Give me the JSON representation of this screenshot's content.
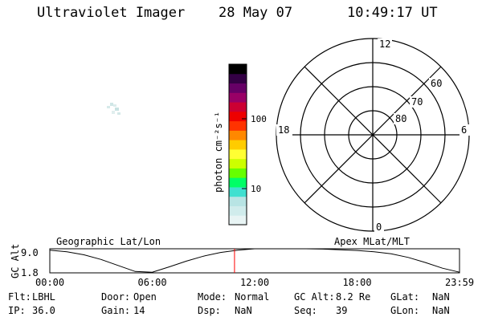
{
  "header": {
    "instrument": "Ultraviolet Imager",
    "date": "28 May 07",
    "time": "10:49:17 UT"
  },
  "colorbar": {
    "label": "photon cm⁻²s⁻¹",
    "ticks": [
      {
        "value": 100,
        "label": "100"
      },
      {
        "value": 10,
        "label": "10"
      }
    ],
    "scale": "log",
    "colors": [
      "#e8f4f4",
      "#d0ecec",
      "#b8e4e4",
      "#40e0d0",
      "#00ff66",
      "#66ff00",
      "#ccff00",
      "#ffff33",
      "#ffcc00",
      "#ff8800",
      "#ff3300",
      "#ee0000",
      "#cc0033",
      "#990066",
      "#660066",
      "#330044",
      "#000000"
    ]
  },
  "polar": {
    "mlt_labels": {
      "top": "12",
      "left": "18",
      "right": "6",
      "bottom": "0"
    },
    "lat_labels": [
      "60",
      "70",
      "80"
    ]
  },
  "timeline": {
    "ylabel": "GC Alt",
    "yticks": [
      "9.0",
      "1.8"
    ],
    "left_title": "Geographic Lat/Lon",
    "right_title": "Apex MLat/MLT",
    "xticks": [
      "00:00",
      "06:00",
      "12:00",
      "18:00",
      "23:59"
    ],
    "current_time_hours": 10.82,
    "curve_color": "#000000",
    "marker_color": "#ff0000"
  },
  "chart_data": {
    "type": "line",
    "xlabel": "",
    "ylabel": "GC Alt",
    "x_range_hours": [
      0,
      24
    ],
    "ylim": [
      1.8,
      9.0
    ],
    "x": [
      0,
      1,
      2,
      3,
      4,
      5,
      6,
      7,
      8,
      9,
      10,
      11,
      12,
      13,
      14,
      15,
      16,
      17,
      18,
      19,
      20,
      21,
      22,
      23,
      24
    ],
    "series": [
      {
        "values": [
          8.6,
          8.1,
          7.2,
          5.8,
          4.0,
          2.2,
          2.0,
          3.6,
          5.3,
          6.8,
          7.9,
          8.6,
          9.0,
          9.1,
          9.1,
          9.0,
          8.9,
          8.7,
          8.5,
          8.1,
          7.5,
          6.4,
          4.9,
          3.2,
          2.0
        ]
      }
    ]
  },
  "info": [
    [
      {
        "k": "Flt:",
        "v": "LBHL"
      },
      {
        "k": "Door:",
        "v": "Open"
      },
      {
        "k": "Mode:",
        "v": "Normal"
      },
      {
        "k": "GC Alt:",
        "v": "8.2 Re"
      },
      {
        "k": "GLat:",
        "v": "NaN"
      }
    ],
    [
      {
        "k": "IP:",
        "v": "36.0"
      },
      {
        "k": "Gain:",
        "v": "14"
      },
      {
        "k": "Dsp:",
        "v": "NaN"
      },
      {
        "k": "Seq:",
        "v": "39"
      },
      {
        "k": "GLon:",
        "v": "NaN"
      }
    ]
  ]
}
